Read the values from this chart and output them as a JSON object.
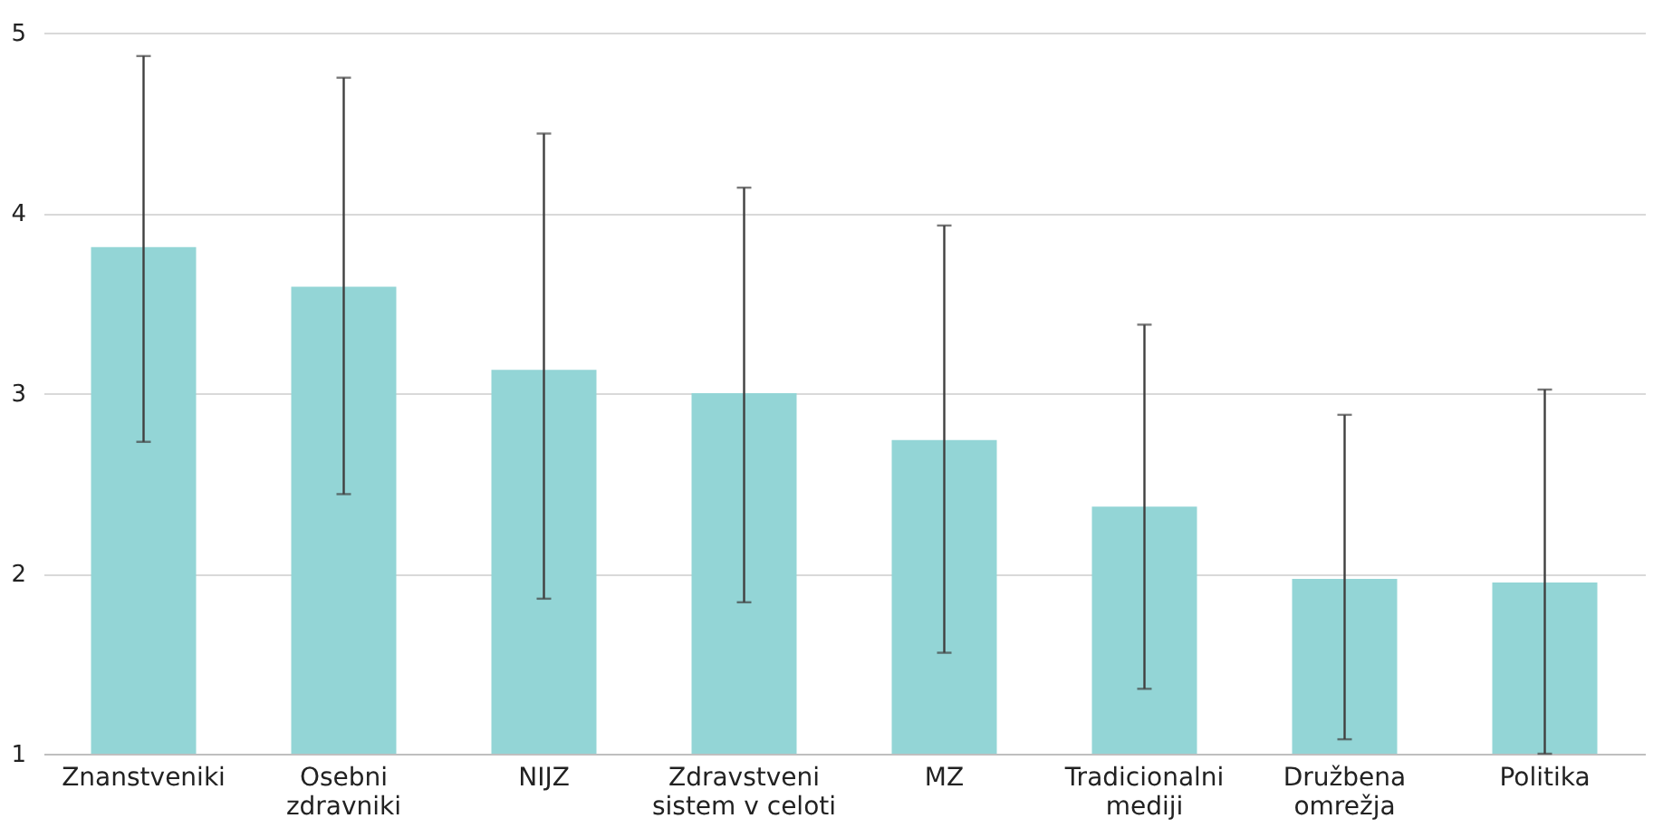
{
  "chart_data": {
    "type": "bar",
    "categories": [
      "Znanstveniki",
      "Osebni zdravniki",
      "NIJZ",
      "Zdravstveni sistem v celoti",
      "MZ",
      "Tradicionalni mediji",
      "Družbena omrežja",
      "Politika"
    ],
    "values": [
      3.81,
      3.59,
      3.13,
      3.0,
      2.74,
      2.37,
      1.97,
      1.95
    ],
    "errors": [
      [
        2.73,
        4.87
      ],
      [
        2.44,
        4.75
      ],
      [
        1.86,
        4.44
      ],
      [
        1.84,
        4.14
      ],
      [
        1.56,
        3.93
      ],
      [
        1.36,
        3.38
      ],
      [
        1.08,
        2.88
      ],
      [
        1.0,
        3.02
      ]
    ],
    "color": "#93d5d6",
    "ylim": [
      1,
      5
    ],
    "yticks": [
      1,
      2,
      3,
      4,
      5
    ],
    "grid": "y"
  }
}
